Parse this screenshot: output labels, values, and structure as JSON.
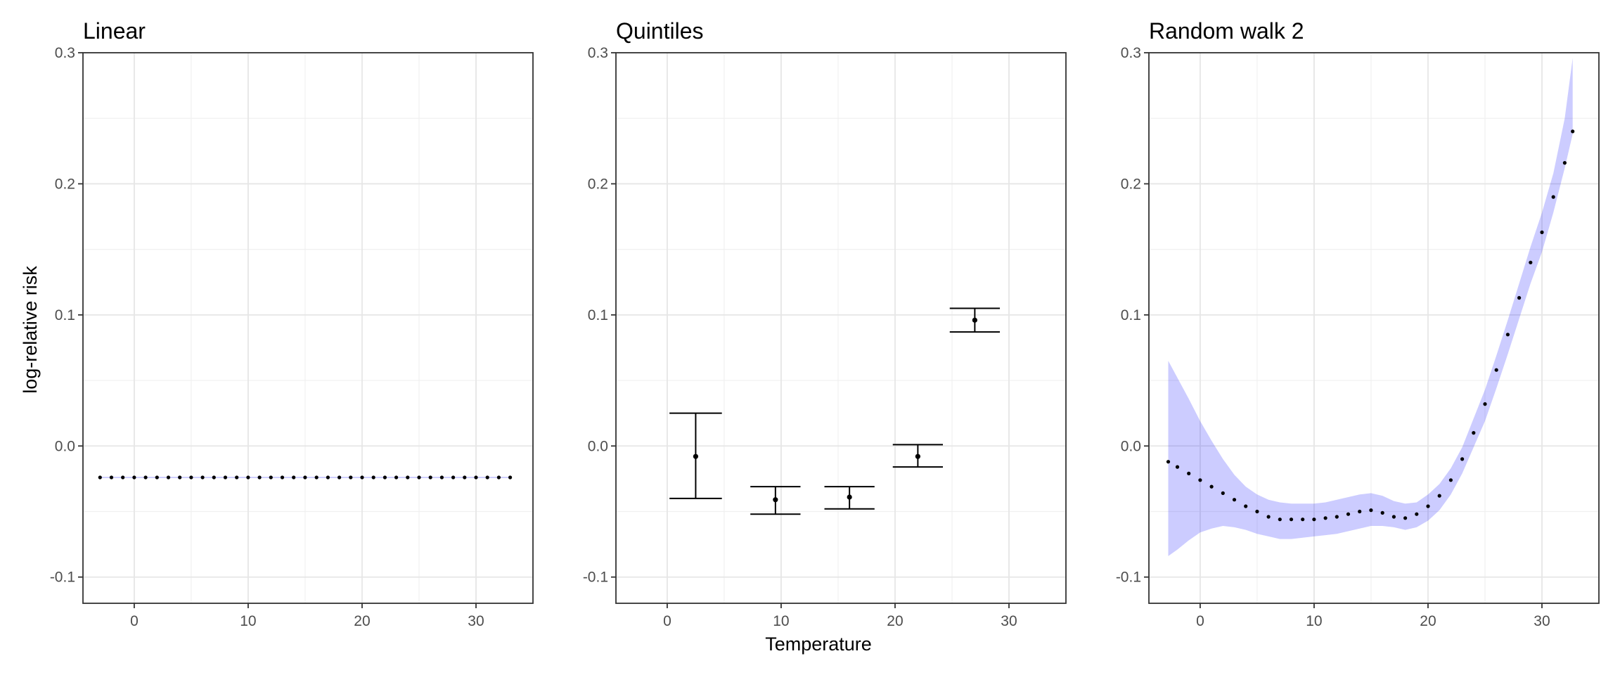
{
  "chart_data": [
    {
      "type": "scatter",
      "title": "Linear",
      "xlabel": "",
      "ylabel": "log-relative risk",
      "xlim": [
        -4.5,
        35
      ],
      "ylim": [
        -0.12,
        0.3
      ],
      "xticks": [
        0,
        10,
        20,
        30
      ],
      "xtick_labels": [
        "0",
        "10",
        "20",
        "30"
      ],
      "yticks": [
        -0.1,
        0.0,
        0.1,
        0.2,
        0.3
      ],
      "ytick_labels": [
        "-0.1",
        "0.0",
        "0.1",
        "0.2",
        "0.3"
      ],
      "grid": true,
      "legend": "none",
      "colors": {
        "point": "#000000",
        "band": "#0000ff"
      },
      "series": [
        {
          "x": [
            -3,
            -2,
            -1,
            0,
            1,
            2,
            3,
            4,
            5,
            6,
            7,
            8,
            9,
            10,
            11,
            12,
            13,
            14,
            15,
            16,
            17,
            18,
            19,
            20,
            21,
            22,
            23,
            24,
            25,
            26,
            27,
            28,
            29,
            30,
            31,
            32,
            33
          ],
          "y": [
            -0.024,
            -0.024,
            -0.024,
            -0.024,
            -0.024,
            -0.024,
            -0.024,
            -0.024,
            -0.024,
            -0.024,
            -0.024,
            -0.024,
            -0.024,
            -0.024,
            -0.024,
            -0.024,
            -0.024,
            -0.024,
            -0.024,
            -0.024,
            -0.024,
            -0.024,
            -0.024,
            -0.024,
            -0.024,
            -0.024,
            -0.024,
            -0.024,
            -0.024,
            -0.024,
            -0.024,
            -0.024,
            -0.024,
            -0.024,
            -0.024,
            -0.024,
            -0.024
          ],
          "lower": [
            -0.0245,
            -0.0245,
            -0.0245,
            -0.0245,
            -0.0245,
            -0.0245,
            -0.0245,
            -0.0245,
            -0.0245,
            -0.0245,
            -0.0245,
            -0.0245,
            -0.0245,
            -0.0245,
            -0.0245,
            -0.0245,
            -0.0245,
            -0.0245,
            -0.0245,
            -0.0245,
            -0.0245,
            -0.0245,
            -0.0245,
            -0.0245,
            -0.0245,
            -0.0245,
            -0.0245,
            -0.0245,
            -0.0245,
            -0.0245,
            -0.0245,
            -0.0245,
            -0.0245,
            -0.0245,
            -0.0245,
            -0.0245,
            -0.0245
          ],
          "upper": [
            -0.0235,
            -0.0235,
            -0.0235,
            -0.0235,
            -0.0235,
            -0.0235,
            -0.0235,
            -0.0235,
            -0.0235,
            -0.0235,
            -0.0235,
            -0.0235,
            -0.0235,
            -0.0235,
            -0.0235,
            -0.0235,
            -0.0235,
            -0.0235,
            -0.0235,
            -0.0235,
            -0.0235,
            -0.0235,
            -0.0235,
            -0.0235,
            -0.0235,
            -0.0235,
            -0.0235,
            -0.0235,
            -0.0235,
            -0.0235,
            -0.0235,
            -0.0235,
            -0.0235,
            -0.0235,
            -0.0235,
            -0.0235,
            -0.0235
          ]
        }
      ]
    },
    {
      "type": "errorbar",
      "title": "Quintiles",
      "xlabel": "Temperature",
      "ylabel": "",
      "xlim": [
        -4.5,
        35
      ],
      "ylim": [
        -0.12,
        0.3
      ],
      "xticks": [
        0,
        10,
        20,
        30
      ],
      "xtick_labels": [
        "0",
        "10",
        "20",
        "30"
      ],
      "yticks": [
        -0.1,
        0.0,
        0.1,
        0.2,
        0.3
      ],
      "ytick_labels": [
        "-0.1",
        "0.0",
        "0.1",
        "0.2",
        "0.3"
      ],
      "grid": true,
      "legend": "none",
      "colors": {
        "point": "#000000",
        "errorbar": "#000000"
      },
      "series": [
        {
          "x": [
            2.5,
            9.5,
            16,
            22,
            27
          ],
          "y": [
            -0.008,
            -0.041,
            -0.039,
            -0.008,
            0.096
          ],
          "lower": [
            -0.04,
            -0.052,
            -0.048,
            -0.016,
            0.087
          ],
          "upper": [
            0.025,
            -0.031,
            -0.031,
            0.001,
            0.105
          ],
          "xmin": [
            0.2,
            7.3,
            13.8,
            19.8,
            24.8
          ],
          "xmax": [
            4.8,
            11.7,
            18.2,
            24.2,
            29.2
          ]
        }
      ]
    },
    {
      "type": "scatter",
      "title": "Random walk 2",
      "xlabel": "",
      "ylabel": "",
      "xlim": [
        -4.5,
        35
      ],
      "ylim": [
        -0.12,
        0.3
      ],
      "xticks": [
        0,
        10,
        20,
        30
      ],
      "xtick_labels": [
        "0",
        "10",
        "20",
        "30"
      ],
      "yticks": [
        -0.1,
        0.0,
        0.1,
        0.2,
        0.3
      ],
      "ytick_labels": [
        "-0.1",
        "0.0",
        "0.1",
        "0.2",
        "0.3"
      ],
      "grid": true,
      "legend": "none",
      "colors": {
        "point": "#000000",
        "band": "#0000ff"
      },
      "series": [
        {
          "x": [
            -2.8,
            -2,
            -1,
            0,
            1,
            2,
            3,
            4,
            5,
            6,
            7,
            8,
            9,
            10,
            11,
            12,
            13,
            14,
            15,
            16,
            17,
            18,
            19,
            20,
            21,
            22,
            23,
            24,
            25,
            26,
            27,
            28,
            29,
            30,
            31,
            32,
            32.7
          ],
          "y": [
            -0.012,
            -0.016,
            -0.021,
            -0.026,
            -0.031,
            -0.036,
            -0.041,
            -0.046,
            -0.05,
            -0.054,
            -0.056,
            -0.056,
            -0.056,
            -0.056,
            -0.055,
            -0.054,
            -0.052,
            -0.05,
            -0.049,
            -0.051,
            -0.054,
            -0.055,
            -0.052,
            -0.046,
            -0.038,
            -0.026,
            -0.01,
            0.01,
            0.032,
            0.058,
            0.085,
            0.113,
            0.14,
            0.163,
            0.19,
            0.216,
            0.24
          ],
          "lower": [
            -0.084,
            -0.079,
            -0.072,
            -0.066,
            -0.063,
            -0.061,
            -0.062,
            -0.064,
            -0.067,
            -0.069,
            -0.071,
            -0.071,
            -0.07,
            -0.069,
            -0.068,
            -0.067,
            -0.065,
            -0.063,
            -0.061,
            -0.061,
            -0.062,
            -0.064,
            -0.062,
            -0.057,
            -0.049,
            -0.037,
            -0.021,
            -0.001,
            0.019,
            0.044,
            0.07,
            0.097,
            0.124,
            0.148,
            0.178,
            0.212,
            0.238
          ],
          "upper": [
            0.065,
            0.052,
            0.036,
            0.019,
            0.004,
            -0.01,
            -0.022,
            -0.031,
            -0.037,
            -0.041,
            -0.043,
            -0.044,
            -0.044,
            -0.044,
            -0.043,
            -0.041,
            -0.039,
            -0.037,
            -0.036,
            -0.038,
            -0.042,
            -0.044,
            -0.043,
            -0.037,
            -0.029,
            -0.017,
            -0.001,
            0.021,
            0.043,
            0.069,
            0.096,
            0.124,
            0.152,
            0.178,
            0.208,
            0.25,
            0.296
          ]
        }
      ]
    }
  ]
}
